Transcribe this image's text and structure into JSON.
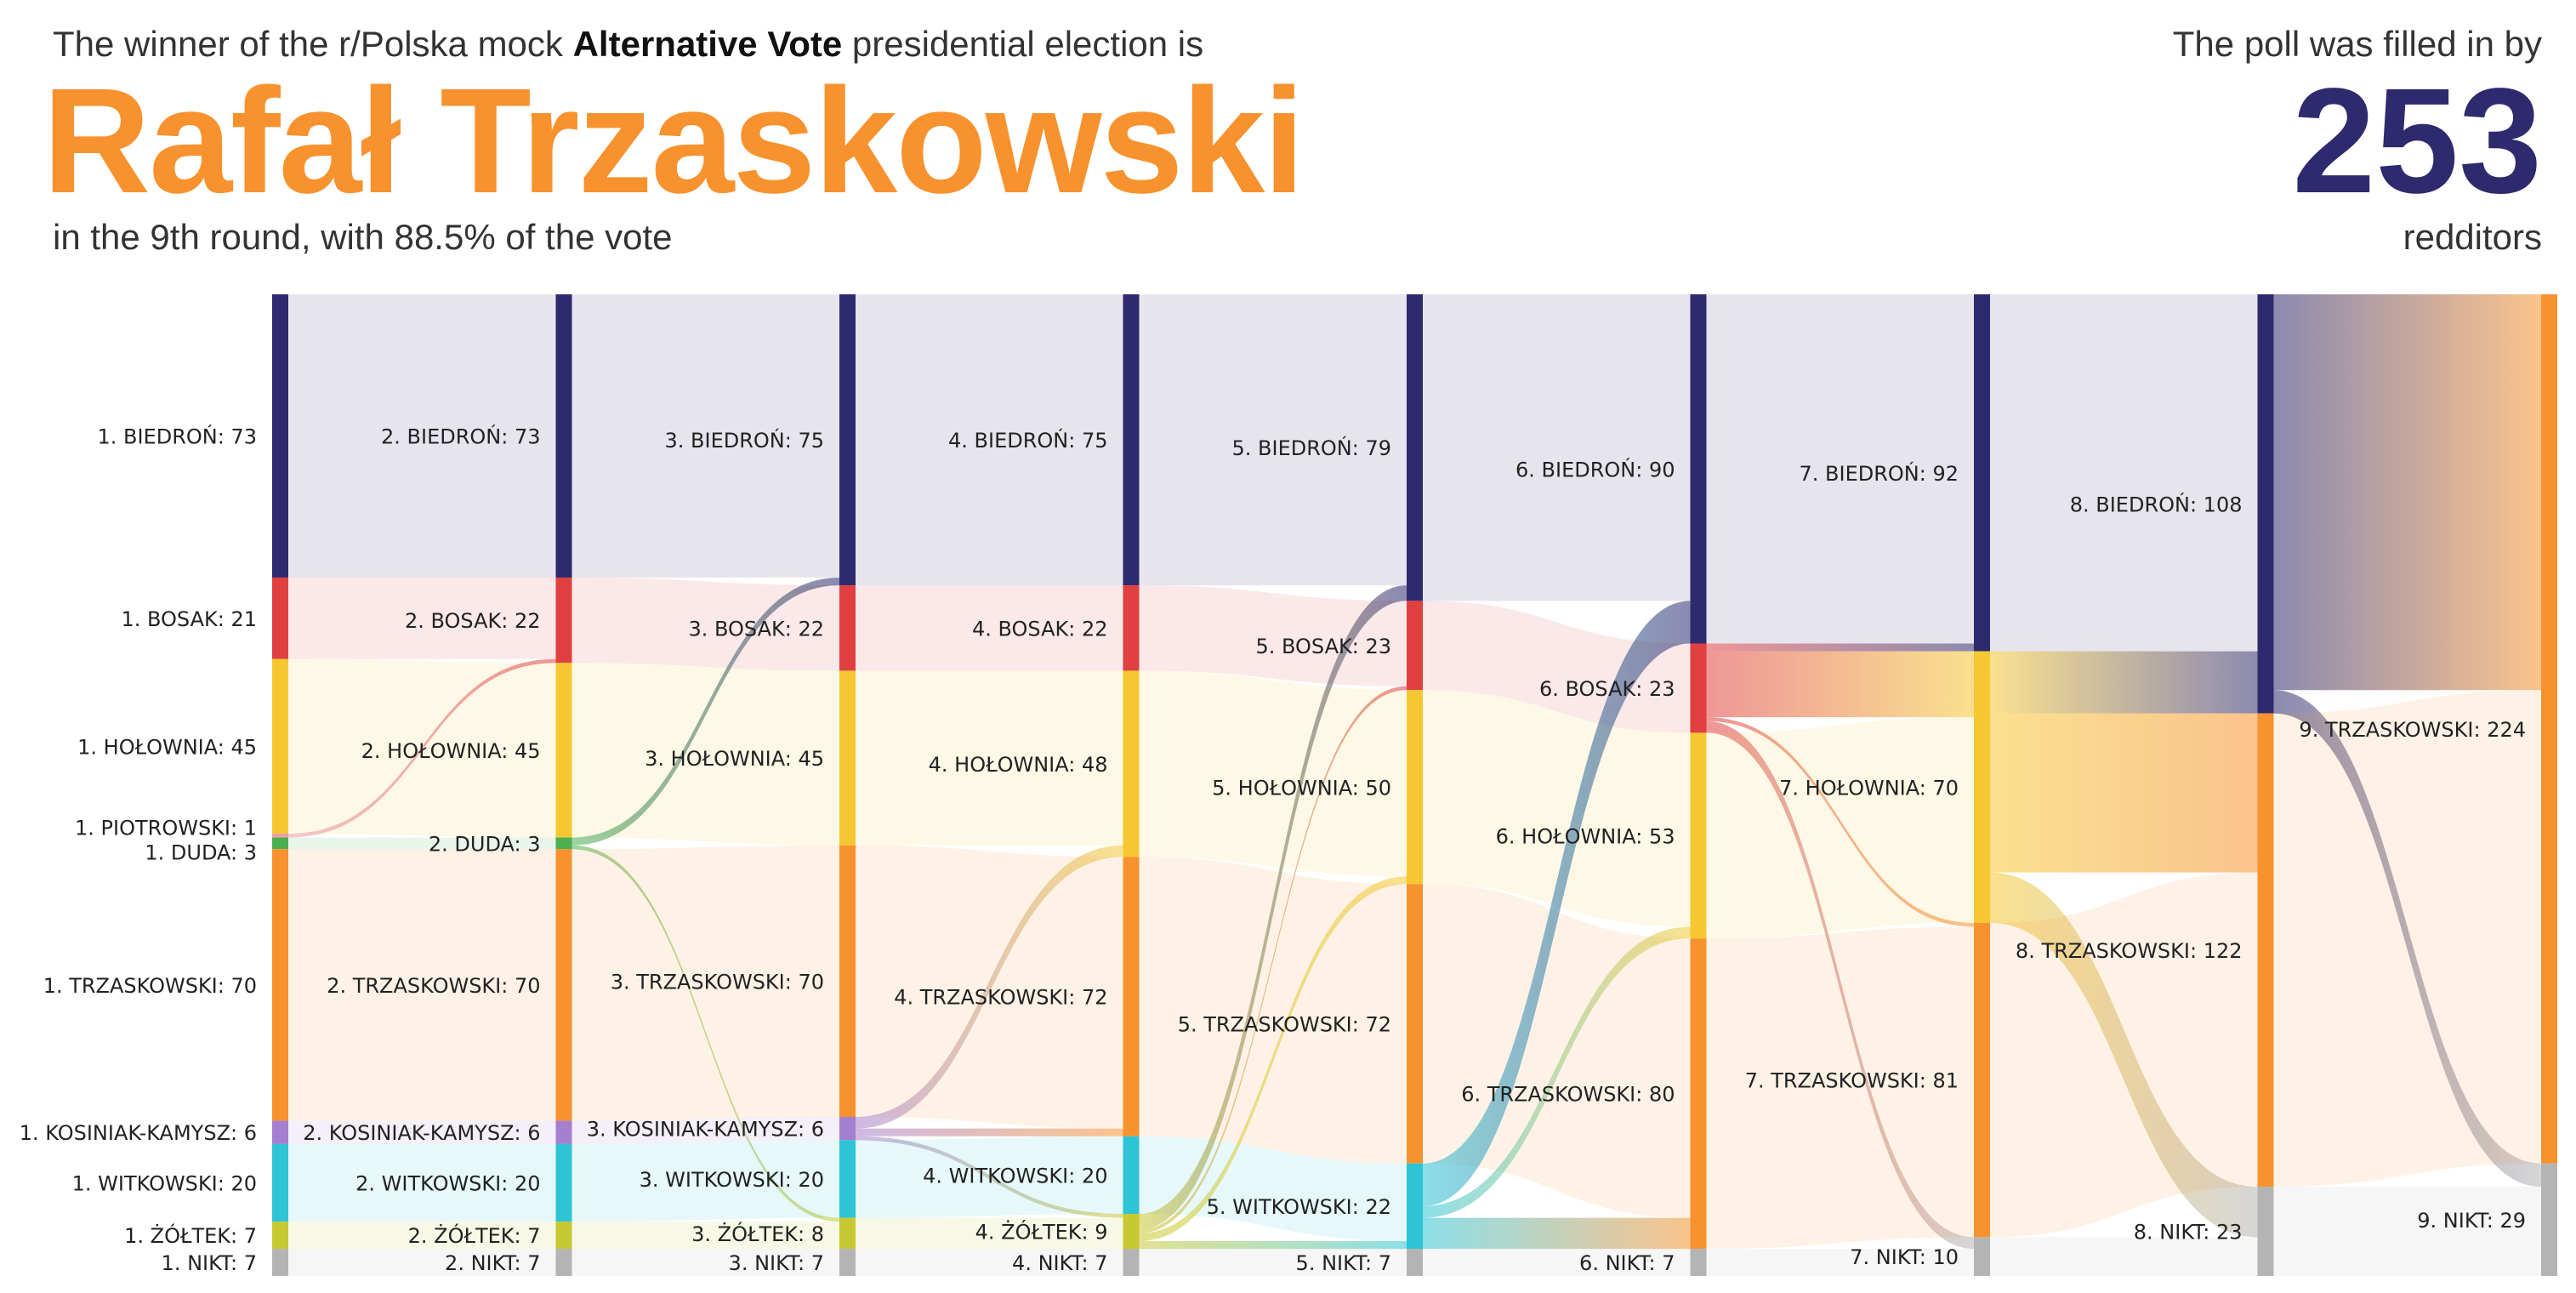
{
  "header": {
    "intro_prefix": "The winner of the r/Polska mock ",
    "intro_bold": "Alternative Vote",
    "intro_suffix": " presidential election is",
    "winner": "Rafał Trzaskowski",
    "subline": "in the 9th round, with 88.5% of the vote",
    "poll_label": "The poll was filled in by",
    "poll_count": "253",
    "poll_unit": "redditors"
  },
  "colors": {
    "BIEDROŃ": "#2E2A6E",
    "BOSAK": "#E04040",
    "HOŁOWNIA": "#F5C832",
    "PIOTROWSKI": "#E8A0A8",
    "DUDA": "#4CAF50",
    "TRZASKOWSKI": "#F7922E",
    "KOSINIAK-KAMYSZ": "#A57FD0",
    "WITKOWSKI": "#2EC4D6",
    "ŻÓŁTEK": "#C8C832",
    "NIKT": "#B4B4B4"
  },
  "chart_data": {
    "type": "sankey",
    "total": 253,
    "rounds": [
      {
        "round": 1,
        "nodes": [
          {
            "name": "BIEDROŃ",
            "value": 73,
            "label": "1. BIEDROŃ: 73"
          },
          {
            "name": "BOSAK",
            "value": 21,
            "label": "1. BOSAK: 21"
          },
          {
            "name": "HOŁOWNIA",
            "value": 45,
            "label": "1. HOŁOWNIA: 45"
          },
          {
            "name": "PIOTROWSKI",
            "value": 1,
            "label": "1. PIOTROWSKI: 1"
          },
          {
            "name": "DUDA",
            "value": 3,
            "label": "1. DUDA: 3"
          },
          {
            "name": "TRZASKOWSKI",
            "value": 70,
            "label": "1. TRZASKOWSKI: 70"
          },
          {
            "name": "KOSINIAK-KAMYSZ",
            "value": 6,
            "label": "1. KOSINIAK-KAMYSZ: 6"
          },
          {
            "name": "WITKOWSKI",
            "value": 20,
            "label": "1. WITKOWSKI: 20"
          },
          {
            "name": "ŻÓŁTEK",
            "value": 7,
            "label": "1. ŻÓŁTEK: 7"
          },
          {
            "name": "NIKT",
            "value": 7,
            "label": "1. NIKT: 7"
          }
        ]
      },
      {
        "round": 2,
        "nodes": [
          {
            "name": "BIEDROŃ",
            "value": 73,
            "label": "2. BIEDROŃ: 73"
          },
          {
            "name": "BOSAK",
            "value": 22,
            "label": "2. BOSAK: 22"
          },
          {
            "name": "HOŁOWNIA",
            "value": 45,
            "label": "2. HOŁOWNIA: 45"
          },
          {
            "name": "DUDA",
            "value": 3,
            "label": "2. DUDA: 3"
          },
          {
            "name": "TRZASKOWSKI",
            "value": 70,
            "label": "2. TRZASKOWSKI: 70"
          },
          {
            "name": "KOSINIAK-KAMYSZ",
            "value": 6,
            "label": "2. KOSINIAK-KAMYSZ: 6"
          },
          {
            "name": "WITKOWSKI",
            "value": 20,
            "label": "2. WITKOWSKI: 20"
          },
          {
            "name": "ŻÓŁTEK",
            "value": 7,
            "label": "2. ŻÓŁTEK: 7"
          },
          {
            "name": "NIKT",
            "value": 7,
            "label": "2. NIKT: 7"
          }
        ]
      },
      {
        "round": 3,
        "nodes": [
          {
            "name": "BIEDROŃ",
            "value": 75,
            "label": "3. BIEDROŃ: 75"
          },
          {
            "name": "BOSAK",
            "value": 22,
            "label": "3. BOSAK: 22"
          },
          {
            "name": "HOŁOWNIA",
            "value": 45,
            "label": "3. HOŁOWNIA: 45"
          },
          {
            "name": "TRZASKOWSKI",
            "value": 70,
            "label": "3. TRZASKOWSKI: 70"
          },
          {
            "name": "KOSINIAK-KAMYSZ",
            "value": 6,
            "label": "3. KOSINIAK-KAMYSZ: 6"
          },
          {
            "name": "WITKOWSKI",
            "value": 20,
            "label": "3. WITKOWSKI: 20"
          },
          {
            "name": "ŻÓŁTEK",
            "value": 8,
            "label": "3. ŻÓŁTEK: 8"
          },
          {
            "name": "NIKT",
            "value": 7,
            "label": "3. NIKT: 7"
          }
        ]
      },
      {
        "round": 4,
        "nodes": [
          {
            "name": "BIEDROŃ",
            "value": 75,
            "label": "4. BIEDROŃ: 75"
          },
          {
            "name": "BOSAK",
            "value": 22,
            "label": "4. BOSAK: 22"
          },
          {
            "name": "HOŁOWNIA",
            "value": 48,
            "label": "4. HOŁOWNIA: 48"
          },
          {
            "name": "TRZASKOWSKI",
            "value": 72,
            "label": "4. TRZASKOWSKI: 72"
          },
          {
            "name": "WITKOWSKI",
            "value": 20,
            "label": "4. WITKOWSKI: 20"
          },
          {
            "name": "ŻÓŁTEK",
            "value": 9,
            "label": "4. ŻÓŁTEK: 9"
          },
          {
            "name": "NIKT",
            "value": 7,
            "label": "4. NIKT: 7"
          }
        ]
      },
      {
        "round": 5,
        "nodes": [
          {
            "name": "BIEDROŃ",
            "value": 79,
            "label": "5. BIEDROŃ: 79"
          },
          {
            "name": "BOSAK",
            "value": 23,
            "label": "5. BOSAK: 23"
          },
          {
            "name": "HOŁOWNIA",
            "value": 50,
            "label": "5. HOŁOWNIA: 50"
          },
          {
            "name": "TRZASKOWSKI",
            "value": 72,
            "label": "5. TRZASKOWSKI: 72"
          },
          {
            "name": "WITKOWSKI",
            "value": 22,
            "label": "5. WITKOWSKI: 22"
          },
          {
            "name": "NIKT",
            "value": 7,
            "label": "5. NIKT: 7"
          }
        ]
      },
      {
        "round": 6,
        "nodes": [
          {
            "name": "BIEDROŃ",
            "value": 90,
            "label": "6. BIEDROŃ: 90"
          },
          {
            "name": "BOSAK",
            "value": 23,
            "label": "6. BOSAK: 23"
          },
          {
            "name": "HOŁOWNIA",
            "value": 53,
            "label": "6. HOŁOWNIA: 53"
          },
          {
            "name": "TRZASKOWSKI",
            "value": 80,
            "label": "6. TRZASKOWSKI: 80"
          },
          {
            "name": "NIKT",
            "value": 7,
            "label": "6. NIKT: 7"
          }
        ]
      },
      {
        "round": 7,
        "nodes": [
          {
            "name": "BIEDROŃ",
            "value": 92,
            "label": "7. BIEDROŃ: 92"
          },
          {
            "name": "HOŁOWNIA",
            "value": 70,
            "label": "7. HOŁOWNIA: 70"
          },
          {
            "name": "TRZASKOWSKI",
            "value": 81,
            "label": "7. TRZASKOWSKI: 81"
          },
          {
            "name": "NIKT",
            "value": 10,
            "label": "7. NIKT: 10"
          }
        ]
      },
      {
        "round": 8,
        "nodes": [
          {
            "name": "BIEDROŃ",
            "value": 108,
            "label": "8. BIEDROŃ: 108"
          },
          {
            "name": "TRZASKOWSKI",
            "value": 122,
            "label": "8. TRZASKOWSKI: 122"
          },
          {
            "name": "NIKT",
            "value": 23,
            "label": "8. NIKT: 23"
          }
        ]
      },
      {
        "round": 9,
        "nodes": [
          {
            "name": "TRZASKOWSKI",
            "value": 224,
            "label": "9. TRZASKOWSKI: 224"
          },
          {
            "name": "NIKT",
            "value": 29,
            "label": "9. NIKT: 29"
          }
        ]
      }
    ],
    "flows": [
      [
        {
          "from": "BIEDROŃ",
          "to": "BIEDROŃ",
          "value": 73
        },
        {
          "from": "BOSAK",
          "to": "BOSAK",
          "value": 21
        },
        {
          "from": "HOŁOWNIA",
          "to": "HOŁOWNIA",
          "value": 45
        },
        {
          "from": "PIOTROWSKI",
          "to": "BOSAK",
          "value": 1
        },
        {
          "from": "DUDA",
          "to": "DUDA",
          "value": 3
        },
        {
          "from": "TRZASKOWSKI",
          "to": "TRZASKOWSKI",
          "value": 70
        },
        {
          "from": "KOSINIAK-KAMYSZ",
          "to": "KOSINIAK-KAMYSZ",
          "value": 6
        },
        {
          "from": "WITKOWSKI",
          "to": "WITKOWSKI",
          "value": 20
        },
        {
          "from": "ŻÓŁTEK",
          "to": "ŻÓŁTEK",
          "value": 7
        },
        {
          "from": "NIKT",
          "to": "NIKT",
          "value": 7
        }
      ],
      [
        {
          "from": "BIEDROŃ",
          "to": "BIEDROŃ",
          "value": 73
        },
        {
          "from": "BOSAK",
          "to": "BOSAK",
          "value": 22
        },
        {
          "from": "HOŁOWNIA",
          "to": "HOŁOWNIA",
          "value": 45
        },
        {
          "from": "DUDA",
          "to": "BIEDROŃ",
          "value": 2
        },
        {
          "from": "DUDA",
          "to": "ŻÓŁTEK",
          "value": 1
        },
        {
          "from": "TRZASKOWSKI",
          "to": "TRZASKOWSKI",
          "value": 70
        },
        {
          "from": "KOSINIAK-KAMYSZ",
          "to": "KOSINIAK-KAMYSZ",
          "value": 6
        },
        {
          "from": "WITKOWSKI",
          "to": "WITKOWSKI",
          "value": 20
        },
        {
          "from": "ŻÓŁTEK",
          "to": "ŻÓŁTEK",
          "value": 7
        },
        {
          "from": "NIKT",
          "to": "NIKT",
          "value": 7
        }
      ],
      [
        {
          "from": "BIEDROŃ",
          "to": "BIEDROŃ",
          "value": 75
        },
        {
          "from": "BOSAK",
          "to": "BOSAK",
          "value": 22
        },
        {
          "from": "HOŁOWNIA",
          "to": "HOŁOWNIA",
          "value": 45
        },
        {
          "from": "TRZASKOWSKI",
          "to": "TRZASKOWSKI",
          "value": 70
        },
        {
          "from": "KOSINIAK-KAMYSZ",
          "to": "HOŁOWNIA",
          "value": 3
        },
        {
          "from": "KOSINIAK-KAMYSZ",
          "to": "TRZASKOWSKI",
          "value": 2
        },
        {
          "from": "KOSINIAK-KAMYSZ",
          "to": "ŻÓŁTEK",
          "value": 1
        },
        {
          "from": "WITKOWSKI",
          "to": "WITKOWSKI",
          "value": 20
        },
        {
          "from": "ŻÓŁTEK",
          "to": "ŻÓŁTEK",
          "value": 8
        },
        {
          "from": "NIKT",
          "to": "NIKT",
          "value": 7
        }
      ],
      [
        {
          "from": "BIEDROŃ",
          "to": "BIEDROŃ",
          "value": 75
        },
        {
          "from": "BOSAK",
          "to": "BOSAK",
          "value": 22
        },
        {
          "from": "HOŁOWNIA",
          "to": "HOŁOWNIA",
          "value": 48
        },
        {
          "from": "TRZASKOWSKI",
          "to": "TRZASKOWSKI",
          "value": 72
        },
        {
          "from": "WITKOWSKI",
          "to": "WITKOWSKI",
          "value": 20
        },
        {
          "from": "ŻÓŁTEK",
          "to": "BIEDROŃ",
          "value": 4
        },
        {
          "from": "ŻÓŁTEK",
          "to": "BOSAK",
          "value": 1
        },
        {
          "from": "ŻÓŁTEK",
          "to": "HOŁOWNIA",
          "value": 2
        },
        {
          "from": "ŻÓŁTEK",
          "to": "WITKOWSKI",
          "value": 2
        },
        {
          "from": "NIKT",
          "to": "NIKT",
          "value": 7
        }
      ],
      [
        {
          "from": "BIEDROŃ",
          "to": "BIEDROŃ",
          "value": 79
        },
        {
          "from": "BOSAK",
          "to": "BOSAK",
          "value": 23
        },
        {
          "from": "HOŁOWNIA",
          "to": "HOŁOWNIA",
          "value": 50
        },
        {
          "from": "TRZASKOWSKI",
          "to": "TRZASKOWSKI",
          "value": 72
        },
        {
          "from": "WITKOWSKI",
          "to": "BIEDROŃ",
          "value": 11
        },
        {
          "from": "WITKOWSKI",
          "to": "HOŁOWNIA",
          "value": 3
        },
        {
          "from": "WITKOWSKI",
          "to": "TRZASKOWSKI",
          "value": 8
        },
        {
          "from": "NIKT",
          "to": "NIKT",
          "value": 7
        }
      ],
      [
        {
          "from": "BIEDROŃ",
          "to": "BIEDROŃ",
          "value": 90
        },
        {
          "from": "BOSAK",
          "to": "BIEDROŃ",
          "value": 2
        },
        {
          "from": "BOSAK",
          "to": "HOŁOWNIA",
          "value": 17
        },
        {
          "from": "BOSAK",
          "to": "TRZASKOWSKI",
          "value": 1
        },
        {
          "from": "BOSAK",
          "to": "NIKT",
          "value": 3
        },
        {
          "from": "HOŁOWNIA",
          "to": "HOŁOWNIA",
          "value": 53
        },
        {
          "from": "TRZASKOWSKI",
          "to": "TRZASKOWSKI",
          "value": 80
        },
        {
          "from": "NIKT",
          "to": "NIKT",
          "value": 7
        }
      ],
      [
        {
          "from": "BIEDROŃ",
          "to": "BIEDROŃ",
          "value": 92
        },
        {
          "from": "HOŁOWNIA",
          "to": "BIEDROŃ",
          "value": 16
        },
        {
          "from": "HOŁOWNIA",
          "to": "TRZASKOWSKI",
          "value": 41
        },
        {
          "from": "HOŁOWNIA",
          "to": "NIKT",
          "value": 13
        },
        {
          "from": "TRZASKOWSKI",
          "to": "TRZASKOWSKI",
          "value": 81
        },
        {
          "from": "NIKT",
          "to": "NIKT",
          "value": 10
        }
      ],
      [
        {
          "from": "BIEDROŃ",
          "to": "TRZASKOWSKI",
          "value": 102
        },
        {
          "from": "BIEDROŃ",
          "to": "NIKT",
          "value": 6
        },
        {
          "from": "TRZASKOWSKI",
          "to": "TRZASKOWSKI",
          "value": 122
        },
        {
          "from": "NIKT",
          "to": "NIKT",
          "value": 23
        }
      ]
    ]
  }
}
